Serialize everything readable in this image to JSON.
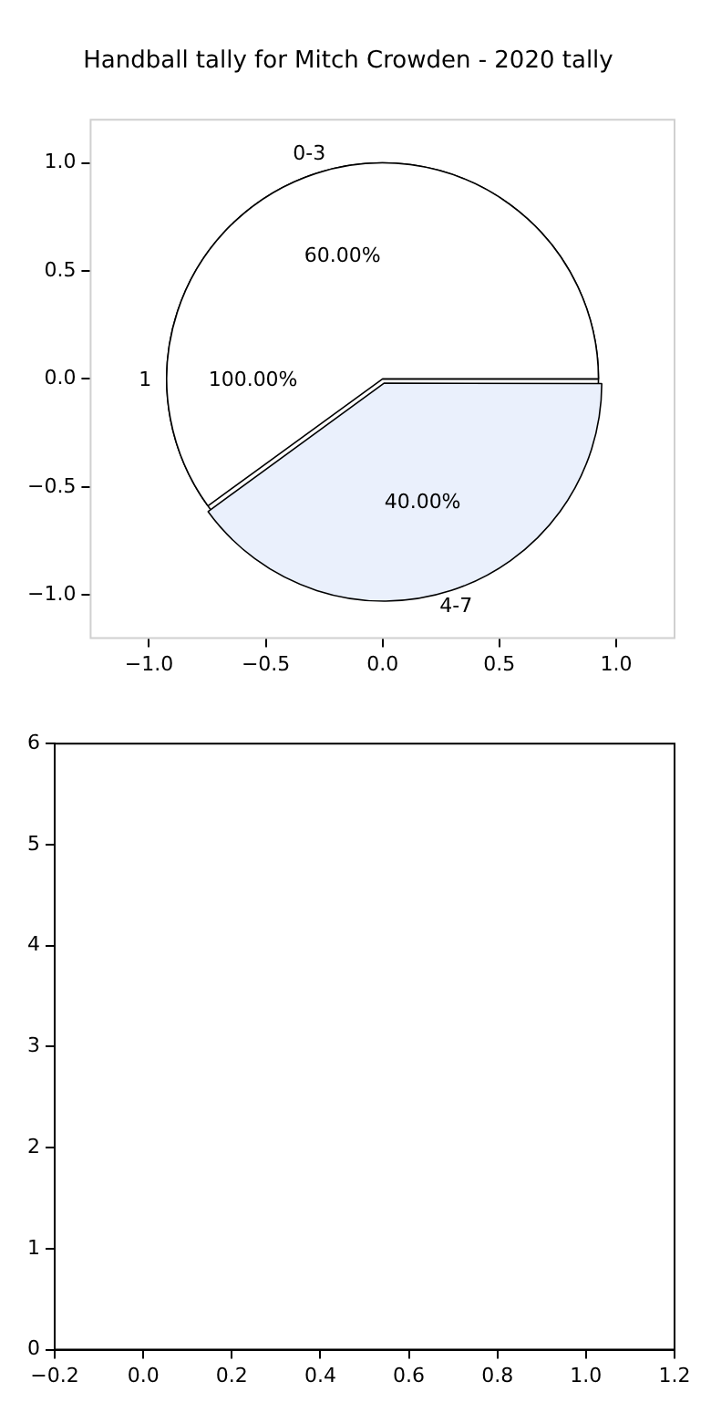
{
  "chart_data": [
    {
      "type": "scatter",
      "title": "Handball tally for Mitch Crowden - 2020 tally",
      "xlim": [
        -1.25,
        1.25
      ],
      "ylim": [
        -1.2,
        1.2
      ],
      "xticks": [
        {
          "value": -1,
          "label": "−1.0"
        },
        {
          "value": -0.5,
          "label": "−0.5"
        },
        {
          "value": 0,
          "label": "0.0"
        },
        {
          "value": 0.5,
          "label": "0.5"
        },
        {
          "value": 1,
          "label": "1.0"
        }
      ],
      "yticks": [
        {
          "value": -1,
          "label": "−1.0"
        },
        {
          "value": -0.5,
          "label": "−0.5"
        },
        {
          "value": 0,
          "label": "0.0"
        },
        {
          "value": 0.5,
          "label": "0.5"
        },
        {
          "value": 1,
          "label": "1.0"
        }
      ]
    },
    {
      "type": "pie",
      "categories": [
        "1"
      ],
      "values": [
        100
      ],
      "colors": [
        "#ffffff"
      ],
      "value_labels": [
        "100.00%"
      ]
    },
    {
      "type": "pie",
      "categories": [
        "0-3",
        "4-7"
      ],
      "values": [
        60,
        40
      ],
      "colors": [
        "#ffffff",
        "#eaf0fc"
      ],
      "value_labels": [
        "60.00%",
        "40.00%"
      ]
    },
    {
      "type": "scatter",
      "xlim": [
        -0.2,
        1.2
      ],
      "ylim": [
        0,
        6
      ],
      "xticks": [
        {
          "value": -0.2,
          "label": "−0.2"
        },
        {
          "value": 0,
          "label": "0.0"
        },
        {
          "value": 0.2,
          "label": "0.2"
        },
        {
          "value": 0.4,
          "label": "0.4"
        },
        {
          "value": 0.6,
          "label": "0.6"
        },
        {
          "value": 0.8,
          "label": "0.8"
        },
        {
          "value": 1,
          "label": "1.0"
        },
        {
          "value": 1.2,
          "label": "1.2"
        }
      ],
      "yticks": [
        0,
        1,
        2,
        3,
        4,
        5,
        6
      ]
    }
  ]
}
